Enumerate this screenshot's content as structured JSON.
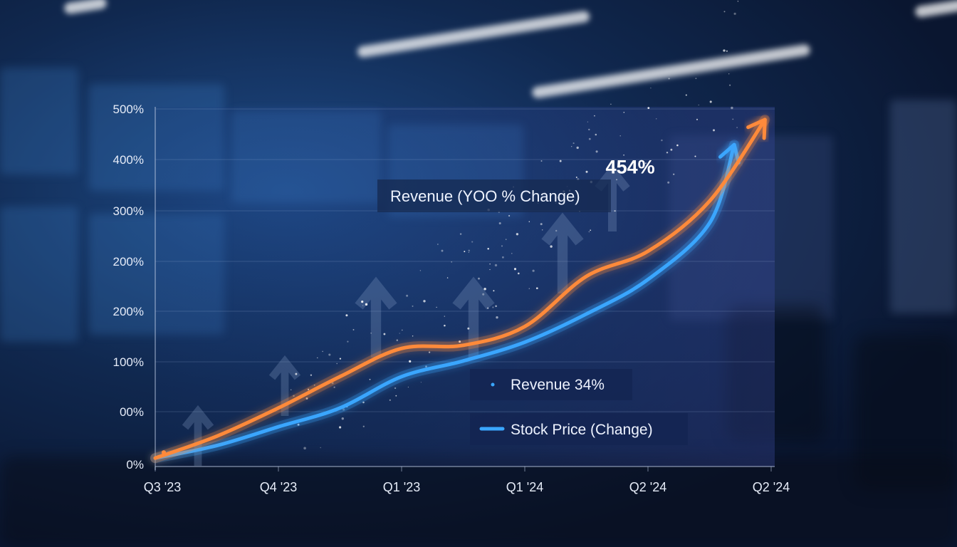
{
  "chart_data": {
    "type": "line",
    "title": "Revenue (YOO % Change)",
    "x_labels": [
      "Q3 '23",
      "Q4 '23",
      "Q1 '23",
      "Q1 '24",
      "Q2 '24",
      "Q2 '24"
    ],
    "y_tick_labels": [
      "0%",
      "00%",
      "100%",
      "200%",
      "200%",
      "300%",
      "400%",
      "500%"
    ],
    "ylim": [
      0,
      500
    ],
    "grid": true,
    "series": [
      {
        "name": "Revenue 34%",
        "color": "#ff8a3a",
        "x": [
          0,
          0.5,
          1,
          1.5,
          2,
          2.5,
          3,
          3.5,
          4,
          4.5,
          4.95
        ],
        "y": [
          10,
          45,
          90,
          140,
          185,
          190,
          220,
          300,
          340,
          420,
          550
        ]
      },
      {
        "name": "Stock Price (Change)",
        "color": "#3aa6ff",
        "x": [
          0,
          0.5,
          1,
          1.5,
          2,
          2.5,
          3,
          3.5,
          4,
          4.5,
          4.7
        ],
        "y": [
          10,
          30,
          60,
          90,
          140,
          165,
          195,
          240,
          295,
          385,
          510
        ]
      }
    ],
    "annotations": [
      {
        "text": "454%",
        "x": 4.35,
        "y": 470
      }
    ],
    "legend": "bottom-center"
  }
}
